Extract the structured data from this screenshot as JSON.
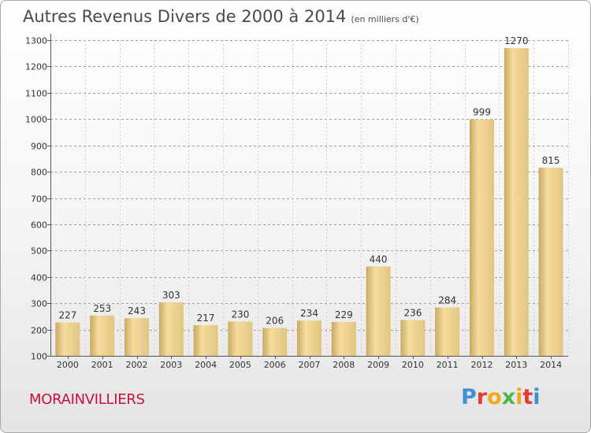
{
  "header": {
    "title": "Autres Revenus Divers de 2000 à 2014",
    "unit": "(en milliers d'€)"
  },
  "footer": {
    "place": "MORAINVILLIERS",
    "logo": [
      "P",
      "r",
      "o",
      "x",
      "i",
      "t",
      "i"
    ]
  },
  "colors": {
    "bar_light": "#f5dc9e",
    "bar_dark": "#c9a962",
    "place_text": "#c8103e",
    "grid": "#a0a0a0"
  },
  "chart_data": {
    "type": "bar",
    "title": "Autres Revenus Divers de 2000 à 2014",
    "subtitle": "(en milliers d'€)",
    "xlabel": "",
    "ylabel": "",
    "categories": [
      "2000",
      "2001",
      "2002",
      "2003",
      "2004",
      "2005",
      "2006",
      "2007",
      "2008",
      "2009",
      "2010",
      "2011",
      "2012",
      "2013",
      "2014"
    ],
    "values": [
      227,
      253,
      243,
      303,
      217,
      230,
      206,
      234,
      229,
      440,
      236,
      284,
      999,
      1270,
      815
    ],
    "ylim": [
      100,
      1300
    ],
    "yticks": [
      100,
      200,
      300,
      400,
      500,
      600,
      700,
      800,
      900,
      1000,
      1100,
      1200,
      1300
    ],
    "grid": true
  }
}
